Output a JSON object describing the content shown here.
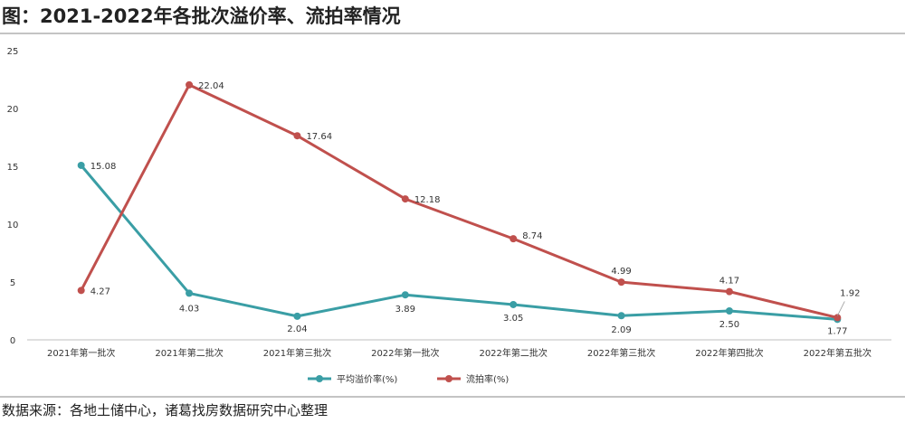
{
  "title": "图：2021-2022年各批次溢价率、流拍率情况",
  "source": "数据来源：各地土储中心，诸葛找房数据研究中心整理",
  "chart_data": {
    "type": "line",
    "categories": [
      "2021年第一批次",
      "2021年第二批次",
      "2021年第三批次",
      "2022年第一批次",
      "2022年第二批次",
      "2022年第三批次",
      "2022年第四批次",
      "2022年第五批次"
    ],
    "series": [
      {
        "name": "平均溢价率(%)",
        "color": "#3a9ea5",
        "values": [
          15.08,
          4.03,
          2.04,
          3.89,
          3.05,
          2.09,
          2.5,
          1.77
        ],
        "labels": [
          "15.08",
          "4.03",
          "2.04",
          "3.89",
          "3.05",
          "2.09",
          "2.50",
          "1.77"
        ]
      },
      {
        "name": "流拍率(%)",
        "color": "#c0504d",
        "values": [
          4.27,
          22.04,
          17.64,
          12.18,
          8.74,
          4.99,
          4.17,
          1.92
        ],
        "labels": [
          "4.27",
          "22.04",
          "17.64",
          "12.18",
          "8.74",
          "4.99",
          "4.17",
          "1.92"
        ]
      }
    ],
    "ylim": [
      0,
      25
    ],
    "yticks": [
      "0",
      "5",
      "10",
      "15",
      "20",
      "25"
    ],
    "grid": false,
    "legend": "bottom-center",
    "xlabel": "",
    "ylabel": ""
  }
}
